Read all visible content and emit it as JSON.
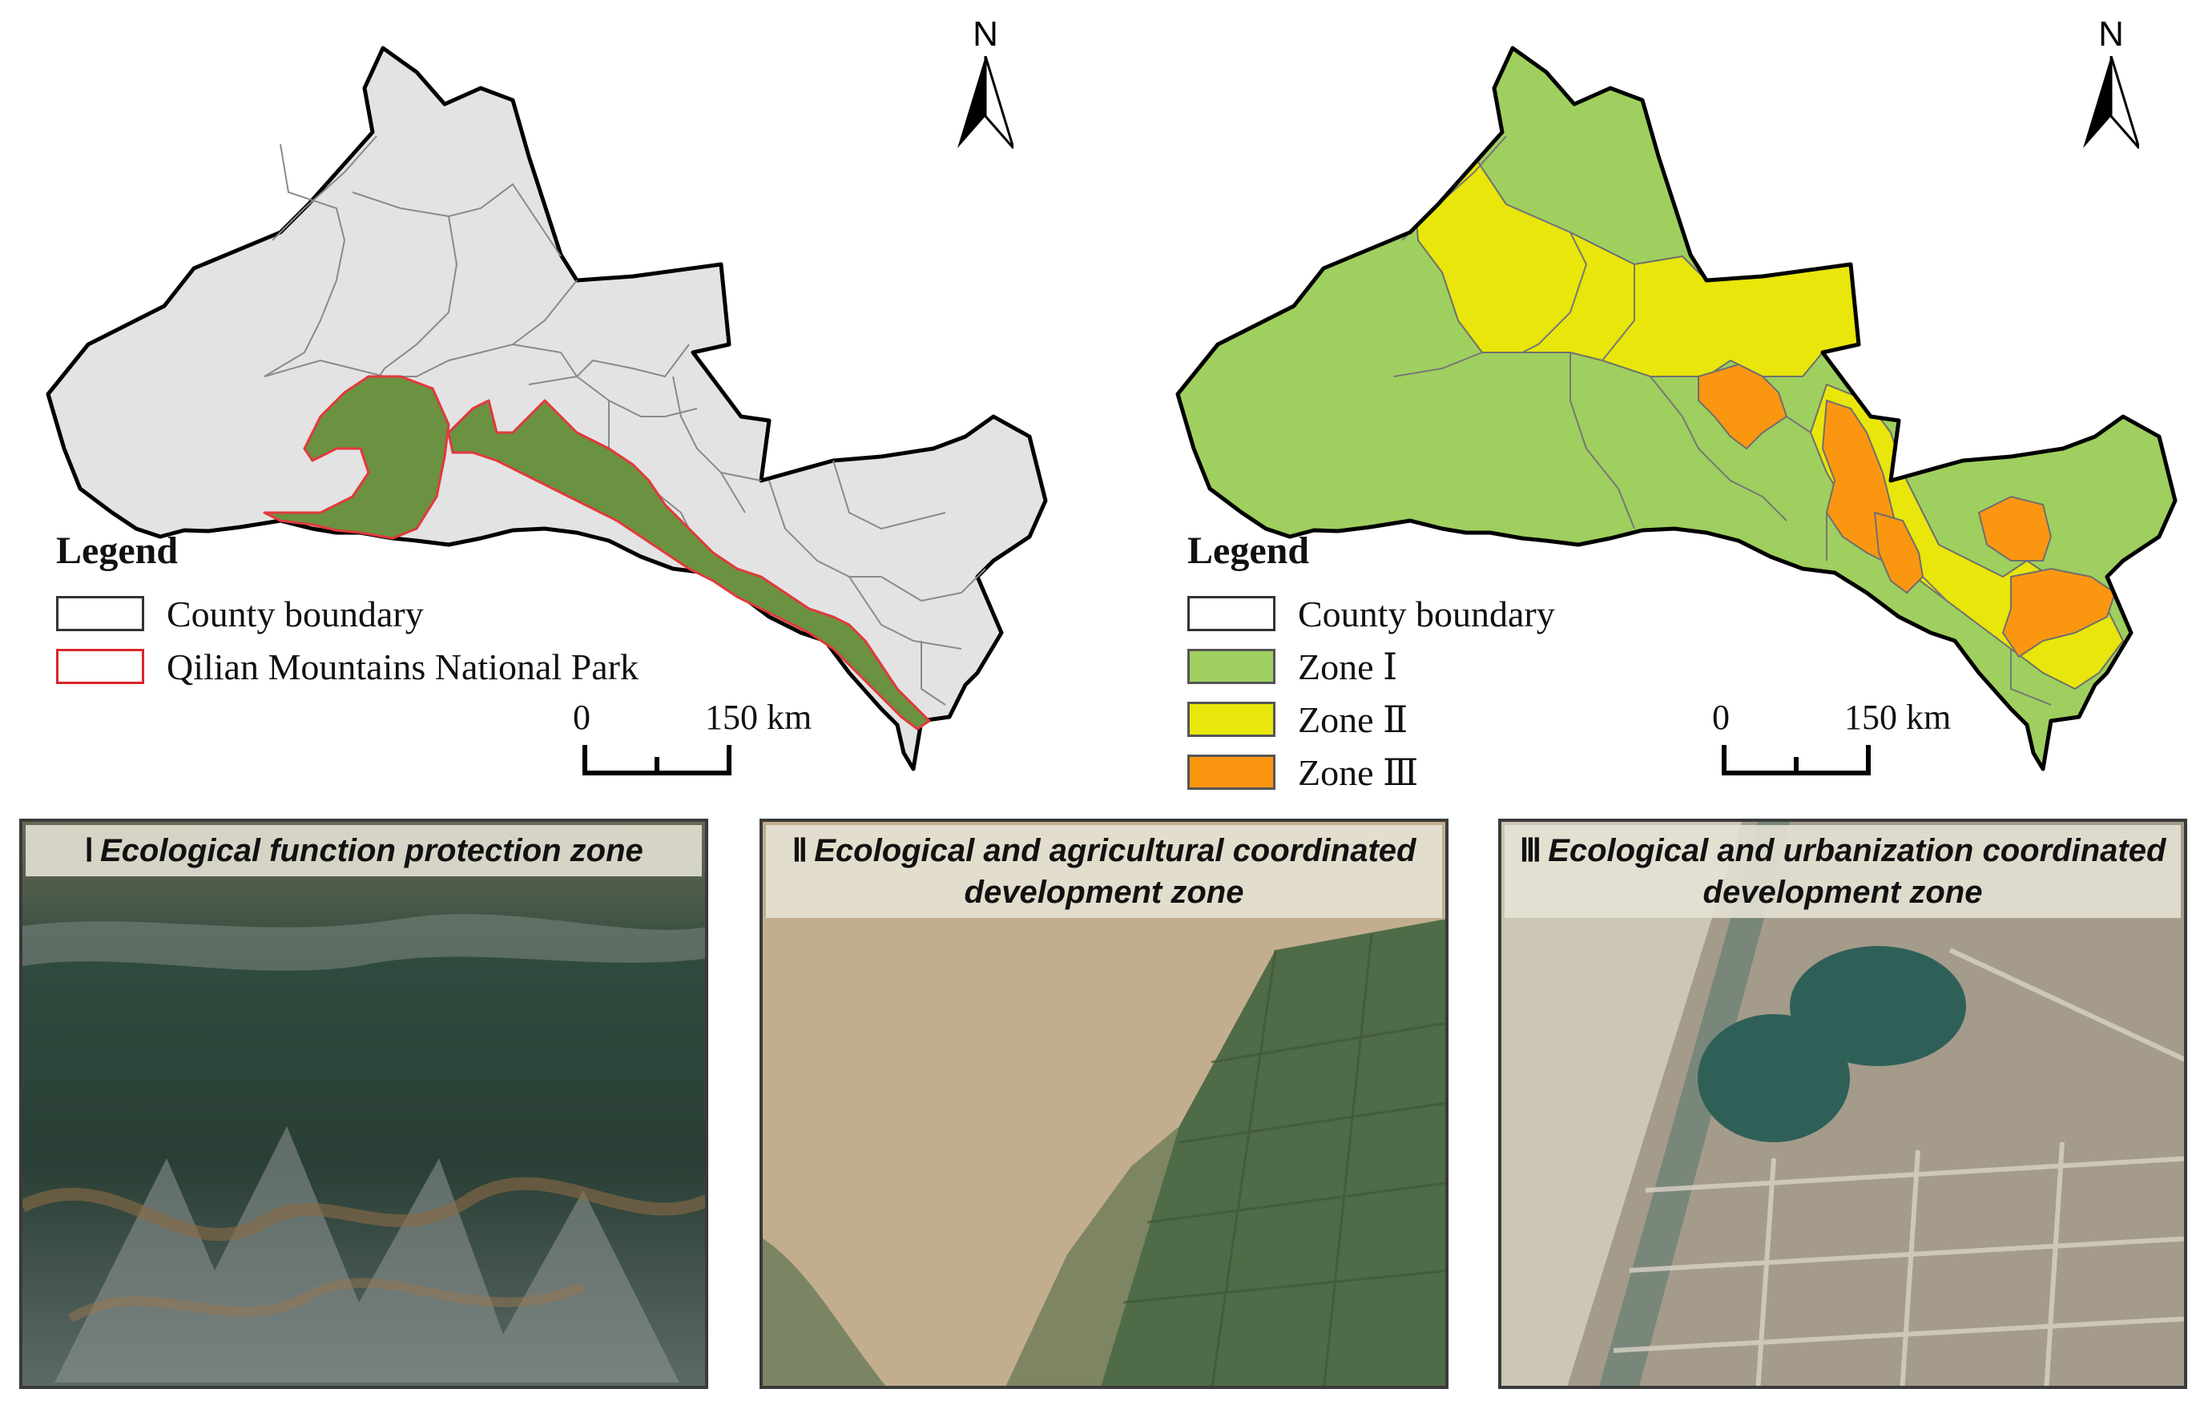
{
  "left_map": {
    "north_label": "N",
    "legend": {
      "title": "Legend",
      "items": [
        {
          "label": "County boundary",
          "fill": "#ffffff",
          "stroke": "#333333"
        },
        {
          "label": "Qilian Mountains National Park",
          "fill": "#ffffff",
          "stroke": "#d9262b"
        }
      ]
    },
    "scale": {
      "start": "0",
      "end": "150 km"
    },
    "colors": {
      "region": "#e3e3e4",
      "park": "#6a9240",
      "park_edge": "#e2383d"
    }
  },
  "right_map": {
    "north_label": "N",
    "legend": {
      "title": "Legend",
      "items": [
        {
          "label": "County boundary",
          "fill": "#ffffff",
          "stroke": "#333333"
        },
        {
          "label": "Zone Ⅰ",
          "fill": "#9fcf5e",
          "stroke": "#555555"
        },
        {
          "label": "Zone Ⅱ",
          "fill": "#e8e60a",
          "stroke": "#555555"
        },
        {
          "label": "Zone Ⅲ",
          "fill": "#fb9610",
          "stroke": "#555555"
        }
      ]
    },
    "scale": {
      "start": "0",
      "end": "150 km"
    }
  },
  "photos": [
    {
      "roman": "Ⅰ",
      "title": "Ecological function protection zone"
    },
    {
      "roman": "Ⅱ",
      "title": "Ecological and agricultural coordinated development zone"
    },
    {
      "roman": "Ⅲ",
      "title": "Ecological and urbanization coordinated development zone"
    }
  ]
}
